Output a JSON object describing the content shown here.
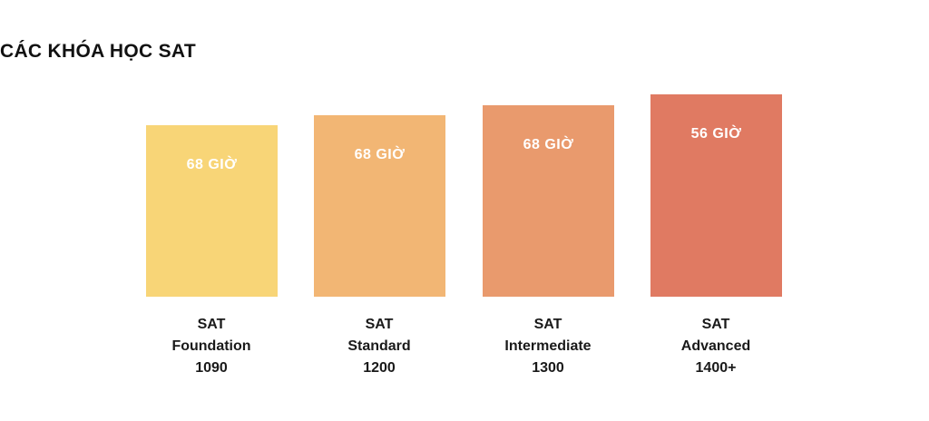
{
  "header": {
    "title": "CÁC KHÓA HỌC SAT"
  },
  "courses": [
    {
      "hours": "68 GIỜ",
      "lines": [
        "SAT",
        "Foundation",
        "1090"
      ]
    },
    {
      "hours": "68 GIỜ",
      "lines": [
        "SAT",
        "Standard",
        "1200"
      ]
    },
    {
      "hours": "68 GIỜ",
      "lines": [
        "SAT",
        "Intermediate",
        "1300"
      ]
    },
    {
      "hours": "56 GIỜ",
      "lines": [
        "SAT",
        "Advanced",
        "1400+"
      ]
    }
  ]
}
